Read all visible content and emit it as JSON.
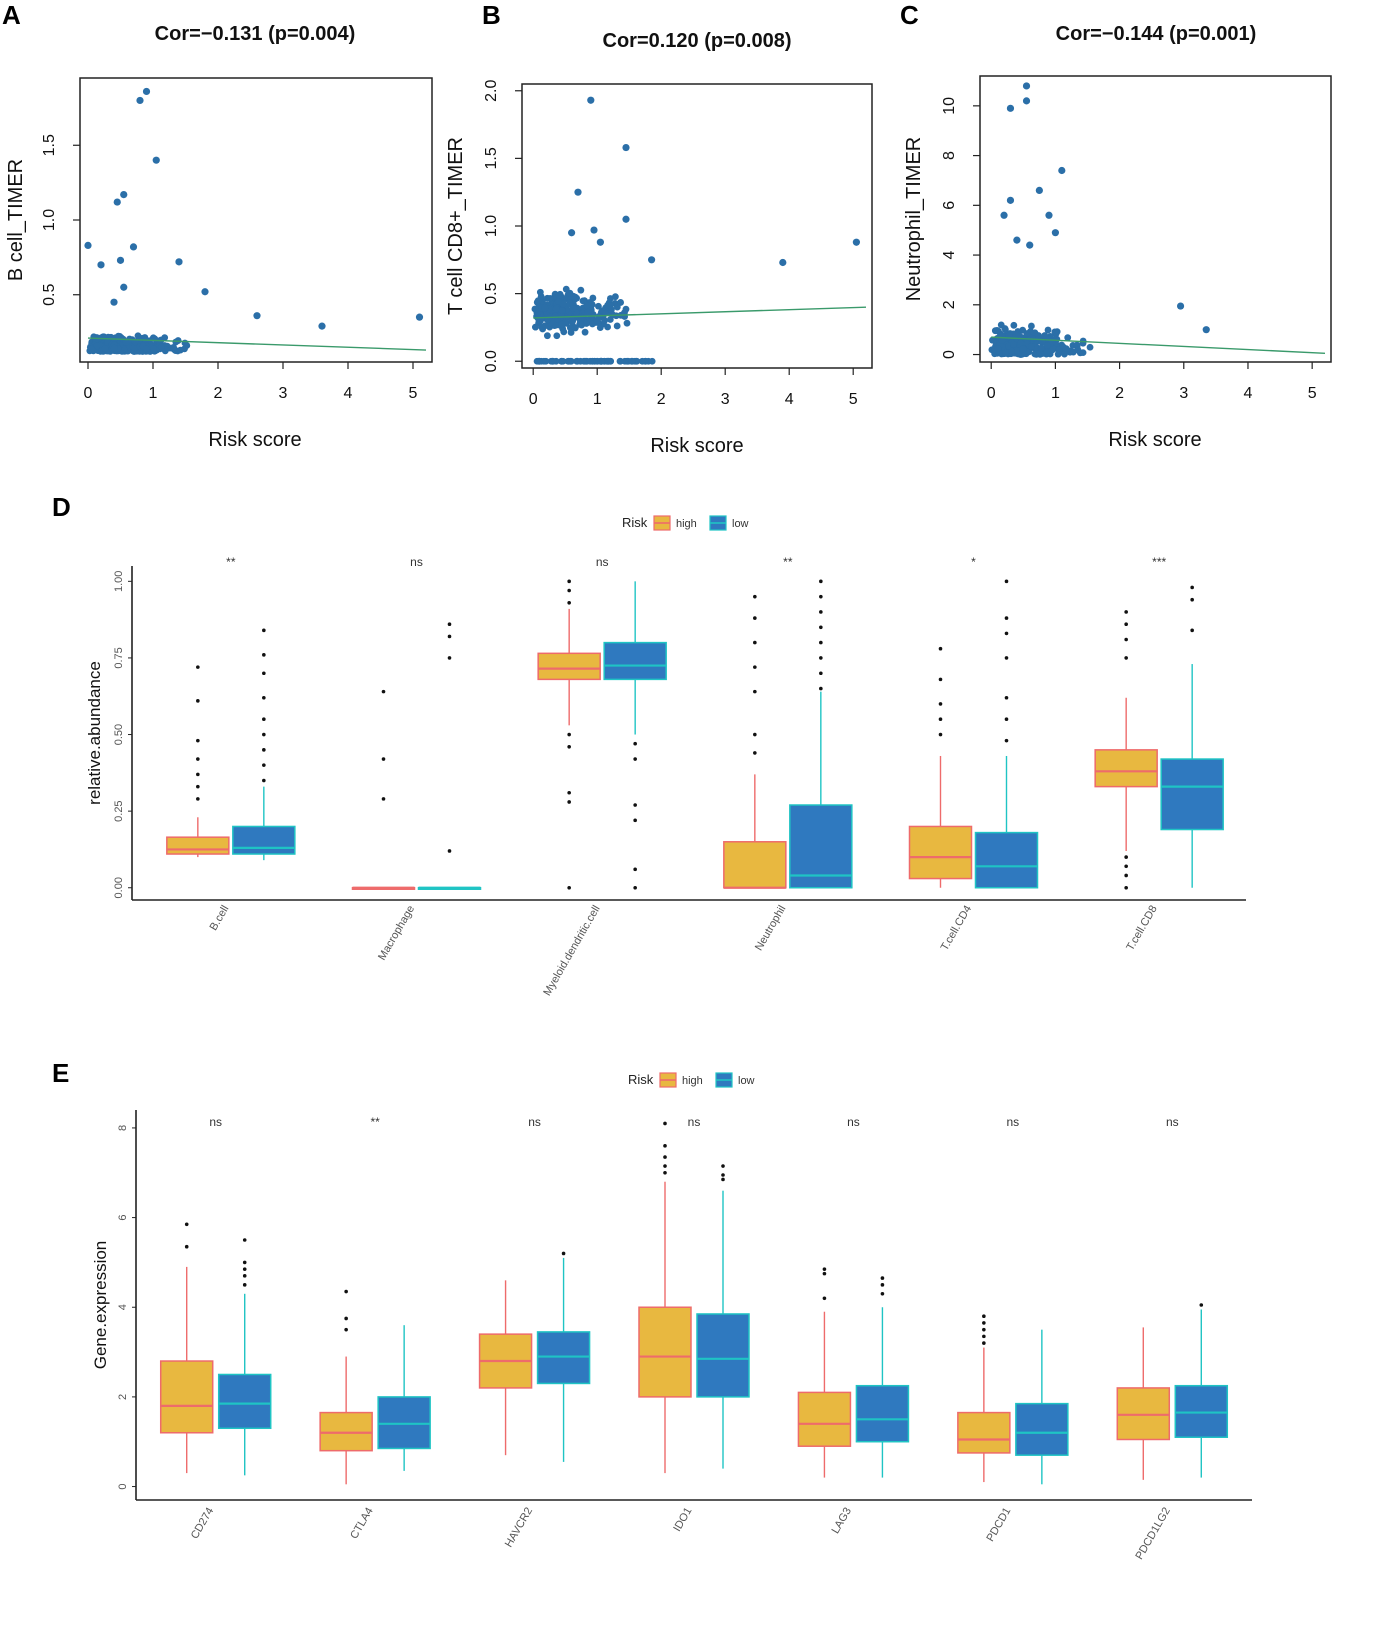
{
  "figure": {
    "colors": {
      "point": "#2b6fa8",
      "trend": "#3a9a6b",
      "high_fill": "#e8b840",
      "high_line": "#ee6b6b",
      "low_fill": "#2f79bf",
      "low_line": "#1fc4c4",
      "axis": "#222222"
    }
  },
  "chart_data": [
    {
      "panel": "A",
      "type": "scatter",
      "title": "Cor=−0.131 (p=0.004)",
      "xlabel": "Risk score",
      "ylabel": "B cell_TIMER",
      "xlim": [
        0,
        5.2
      ],
      "ylim": [
        0.05,
        1.95
      ],
      "xticks": [
        "0",
        "1",
        "2",
        "3",
        "4",
        "5"
      ],
      "yticks": [
        "0.5",
        "1.0",
        "1.5"
      ],
      "trend": {
        "x": [
          0,
          5.2
        ],
        "y": [
          0.21,
          0.13
        ]
      },
      "outliers": {
        "x": [
          0.0,
          0.45,
          0.55,
          0.8,
          0.5,
          0.9,
          1.05,
          0.7,
          0.2,
          0.55,
          1.4,
          0.4,
          1.8,
          2.6,
          3.6,
          5.1
        ],
        "y": [
          0.83,
          1.12,
          1.17,
          1.8,
          0.73,
          1.86,
          1.4,
          0.82,
          0.7,
          0.55,
          0.72,
          0.45,
          0.52,
          0.36,
          0.29,
          0.35
        ]
      }
    },
    {
      "panel": "B",
      "type": "scatter",
      "title": "Cor=0.120 (p=0.008)",
      "xlabel": "Risk score",
      "ylabel": "T cell CD8+_TIMER",
      "xlim": [
        -0.05,
        5.2
      ],
      "ylim": [
        -0.05,
        2.05
      ],
      "xticks": [
        "0",
        "1",
        "2",
        "3",
        "4",
        "5"
      ],
      "yticks": [
        "0.0",
        "0.5",
        "1.0",
        "1.5",
        "2.0"
      ],
      "trend": {
        "x": [
          0,
          5.2
        ],
        "y": [
          0.32,
          0.4
        ]
      },
      "outliers": {
        "x": [
          0.9,
          1.45,
          0.7,
          1.45,
          0.95,
          1.85,
          3.9,
          5.05,
          1.05,
          0.6
        ],
        "y": [
          1.93,
          1.58,
          1.25,
          1.05,
          0.97,
          0.75,
          0.73,
          0.88,
          0.88,
          0.95
        ]
      }
    },
    {
      "panel": "C",
      "type": "scatter",
      "title": "Cor=−0.144 (p=0.001)",
      "xlabel": "Risk score",
      "ylabel": "Neutrophil_TIMER",
      "xlim": [
        -0.05,
        5.2
      ],
      "ylim": [
        -0.3,
        11.2
      ],
      "xticks": [
        "0",
        "1",
        "2",
        "3",
        "4",
        "5"
      ],
      "yticks": [
        "0",
        "2",
        "4",
        "6",
        "8",
        "10"
      ],
      "trend": {
        "x": [
          0,
          5.2
        ],
        "y": [
          0.7,
          0.05
        ]
      },
      "outliers": {
        "x": [
          0.55,
          0.3,
          0.55,
          1.1,
          0.3,
          0.75,
          0.9,
          0.2,
          0.4,
          1.0,
          0.6,
          2.95,
          3.35
        ],
        "y": [
          10.8,
          9.9,
          10.2,
          7.4,
          6.2,
          6.6,
          5.6,
          5.6,
          4.6,
          4.9,
          4.4,
          1.95,
          1.0
        ]
      }
    },
    {
      "panel": "D",
      "type": "box",
      "legend_title": "Risk",
      "legend": [
        "high",
        "low"
      ],
      "ylabel": "relative.abundance",
      "ylim": [
        -0.04,
        1.05
      ],
      "yticks": [
        "0.00",
        "0.25",
        "0.50",
        "0.75",
        "1.00"
      ],
      "categories": [
        "B.cell",
        "Macrophage",
        "Myeloid.dendritic.cell",
        "Neutrophil",
        "T.cell.CD4",
        "T.cell.CD8"
      ],
      "significance": [
        "**",
        "ns",
        "ns",
        "**",
        "*",
        "***"
      ],
      "series": [
        {
          "name": "high",
          "boxes": [
            {
              "min": 0.1,
              "q1": 0.11,
              "median": 0.125,
              "q3": 0.165,
              "max": 0.23
            },
            {
              "min": 0.0,
              "q1": 0.0,
              "median": 0.0,
              "q3": 0.0,
              "max": 0.0
            },
            {
              "min": 0.53,
              "q1": 0.68,
              "median": 0.715,
              "q3": 0.765,
              "max": 0.91
            },
            {
              "min": 0.0,
              "q1": 0.0,
              "median": 0.0,
              "q3": 0.15,
              "max": 0.37
            },
            {
              "min": 0.0,
              "q1": 0.03,
              "median": 0.1,
              "q3": 0.2,
              "max": 0.43
            },
            {
              "min": 0.12,
              "q1": 0.33,
              "median": 0.38,
              "q3": 0.45,
              "max": 0.62
            }
          ],
          "outliers": [
            [
              0.29,
              0.33,
              0.37,
              0.42,
              0.48,
              0.61,
              0.72
            ],
            [
              0.29,
              0.42,
              0.64
            ],
            [
              0.0,
              0.28,
              0.31,
              0.46,
              0.5,
              0.93,
              0.97,
              1.0
            ],
            [
              0.44,
              0.5,
              0.64,
              0.72,
              0.8,
              0.88,
              0.95
            ],
            [
              0.5,
              0.55,
              0.6,
              0.68,
              0.78
            ],
            [
              0.0,
              0.04,
              0.07,
              0.1,
              0.75,
              0.81,
              0.86,
              0.9
            ]
          ]
        },
        {
          "name": "low",
          "boxes": [
            {
              "min": 0.09,
              "q1": 0.11,
              "median": 0.13,
              "q3": 0.2,
              "max": 0.33
            },
            {
              "min": 0.0,
              "q1": 0.0,
              "median": 0.0,
              "q3": 0.0,
              "max": 0.0
            },
            {
              "min": 0.5,
              "q1": 0.68,
              "median": 0.725,
              "q3": 0.8,
              "max": 1.0
            },
            {
              "min": 0.0,
              "q1": 0.0,
              "median": 0.04,
              "q3": 0.27,
              "max": 0.64
            },
            {
              "min": 0.0,
              "q1": 0.0,
              "median": 0.07,
              "q3": 0.18,
              "max": 0.43
            },
            {
              "min": 0.0,
              "q1": 0.19,
              "median": 0.33,
              "q3": 0.42,
              "max": 0.73
            }
          ],
          "outliers": [
            [
              0.35,
              0.4,
              0.45,
              0.5,
              0.55,
              0.62,
              0.7,
              0.76,
              0.84
            ],
            [
              0.12,
              0.75,
              0.82,
              0.86
            ],
            [
              0.0,
              0.06,
              0.22,
              0.27,
              0.42,
              0.47
            ],
            [
              0.65,
              0.7,
              0.75,
              0.8,
              0.85,
              0.9,
              0.95,
              1.0
            ],
            [
              0.48,
              0.55,
              0.62,
              0.75,
              0.83,
              0.88,
              1.0
            ],
            [
              0.84,
              0.94,
              0.98
            ]
          ]
        }
      ]
    },
    {
      "panel": "E",
      "type": "box",
      "legend_title": "Risk",
      "legend": [
        "high",
        "low"
      ],
      "ylabel": "Gene.expression",
      "ylim": [
        -0.3,
        8.4
      ],
      "yticks": [
        "0",
        "2",
        "4",
        "6",
        "8"
      ],
      "categories": [
        "CD274",
        "CTLA4",
        "HAVCR2",
        "IDO1",
        "LAG3",
        "PDCD1",
        "PDCD1LG2"
      ],
      "significance": [
        "ns",
        "**",
        "ns",
        "ns",
        "ns",
        "ns",
        "ns"
      ],
      "series": [
        {
          "name": "high",
          "boxes": [
            {
              "min": 0.3,
              "q1": 1.2,
              "median": 1.8,
              "q3": 2.8,
              "max": 4.9
            },
            {
              "min": 0.05,
              "q1": 0.8,
              "median": 1.2,
              "q3": 1.65,
              "max": 2.9
            },
            {
              "min": 0.7,
              "q1": 2.2,
              "median": 2.8,
              "q3": 3.4,
              "max": 4.6
            },
            {
              "min": 0.3,
              "q1": 2.0,
              "median": 2.9,
              "q3": 4.0,
              "max": 6.8
            },
            {
              "min": 0.2,
              "q1": 0.9,
              "median": 1.4,
              "q3": 2.1,
              "max": 3.9
            },
            {
              "min": 0.1,
              "q1": 0.75,
              "median": 1.05,
              "q3": 1.65,
              "max": 3.1
            },
            {
              "min": 0.15,
              "q1": 1.05,
              "median": 1.6,
              "q3": 2.2,
              "max": 3.55
            }
          ],
          "outliers": [
            [
              5.35,
              5.85
            ],
            [
              3.5,
              3.75,
              4.35
            ],
            [],
            [
              7.0,
              7.15,
              7.35,
              7.6,
              8.1
            ],
            [
              4.2,
              4.75,
              4.85
            ],
            [
              3.2,
              3.35,
              3.5,
              3.65,
              3.8
            ],
            []
          ]
        },
        {
          "name": "low",
          "boxes": [
            {
              "min": 0.25,
              "q1": 1.3,
              "median": 1.85,
              "q3": 2.5,
              "max": 4.3
            },
            {
              "min": 0.35,
              "q1": 0.85,
              "median": 1.4,
              "q3": 2.0,
              "max": 3.6
            },
            {
              "min": 0.55,
              "q1": 2.3,
              "median": 2.9,
              "q3": 3.45,
              "max": 5.1
            },
            {
              "min": 0.4,
              "q1": 2.0,
              "median": 2.85,
              "q3": 3.85,
              "max": 6.6
            },
            {
              "min": 0.2,
              "q1": 1.0,
              "median": 1.5,
              "q3": 2.25,
              "max": 4.0
            },
            {
              "min": 0.05,
              "q1": 0.7,
              "median": 1.2,
              "q3": 1.85,
              "max": 3.5
            },
            {
              "min": 0.2,
              "q1": 1.1,
              "median": 1.65,
              "q3": 2.25,
              "max": 3.95
            }
          ],
          "outliers": [
            [
              4.5,
              4.7,
              4.85,
              5.0,
              5.5
            ],
            [],
            [
              5.2
            ],
            [
              6.85,
              6.95,
              7.15
            ],
            [
              4.3,
              4.5,
              4.65
            ],
            [],
            [
              4.05
            ]
          ]
        }
      ]
    }
  ]
}
